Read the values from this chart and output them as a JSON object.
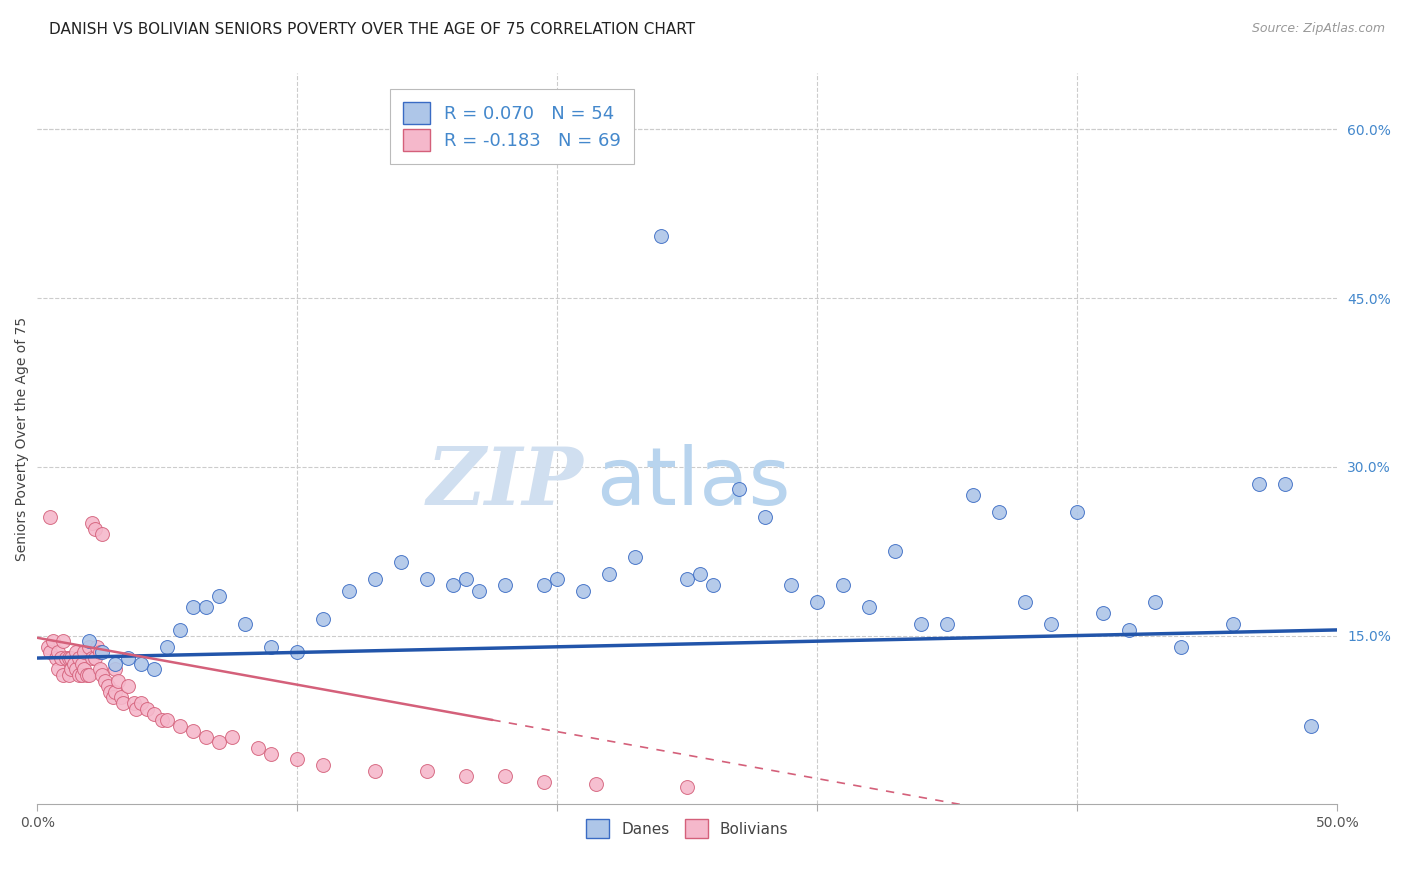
{
  "title": "DANISH VS BOLIVIAN SENIORS POVERTY OVER THE AGE OF 75 CORRELATION CHART",
  "source": "Source: ZipAtlas.com",
  "ylabel": "Seniors Poverty Over the Age of 75",
  "xlim": [
    0.0,
    0.5
  ],
  "ylim": [
    0.0,
    0.65
  ],
  "xticks": [
    0.0,
    0.1,
    0.2,
    0.3,
    0.4,
    0.5
  ],
  "xticklabels": [
    "0.0%",
    "",
    "",
    "",
    "",
    "50.0%"
  ],
  "yticks_right": [
    0.0,
    0.15,
    0.3,
    0.45,
    0.6
  ],
  "ytick_labels_right": [
    "",
    "15.0%",
    "30.0%",
    "45.0%",
    "60.0%"
  ],
  "danes_R": 0.07,
  "danes_N": 54,
  "bolivians_R": -0.183,
  "bolivians_N": 69,
  "danes_color": "#aec6e8",
  "danes_edge_color": "#3a6bc4",
  "bolivians_color": "#f5b8cb",
  "bolivians_edge_color": "#d4607a",
  "danes_line_color": "#2255aa",
  "bolivians_line_color": "#d4607a",
  "danes_x": [
    0.02,
    0.025,
    0.03,
    0.035,
    0.04,
    0.045,
    0.05,
    0.055,
    0.06,
    0.065,
    0.07,
    0.08,
    0.09,
    0.1,
    0.11,
    0.12,
    0.13,
    0.14,
    0.15,
    0.16,
    0.165,
    0.17,
    0.18,
    0.195,
    0.2,
    0.21,
    0.22,
    0.23,
    0.24,
    0.25,
    0.255,
    0.26,
    0.27,
    0.28,
    0.29,
    0.3,
    0.31,
    0.32,
    0.33,
    0.34,
    0.35,
    0.36,
    0.37,
    0.38,
    0.39,
    0.4,
    0.41,
    0.42,
    0.43,
    0.44,
    0.46,
    0.47,
    0.48,
    0.49
  ],
  "danes_y": [
    0.145,
    0.135,
    0.125,
    0.13,
    0.125,
    0.12,
    0.14,
    0.155,
    0.175,
    0.175,
    0.185,
    0.16,
    0.14,
    0.135,
    0.165,
    0.19,
    0.2,
    0.215,
    0.2,
    0.195,
    0.2,
    0.19,
    0.195,
    0.195,
    0.2,
    0.19,
    0.205,
    0.22,
    0.505,
    0.2,
    0.205,
    0.195,
    0.28,
    0.255,
    0.195,
    0.18,
    0.195,
    0.175,
    0.225,
    0.16,
    0.16,
    0.275,
    0.26,
    0.18,
    0.16,
    0.26,
    0.17,
    0.155,
    0.18,
    0.14,
    0.16,
    0.285,
    0.285,
    0.07
  ],
  "bolivians_x": [
    0.004,
    0.005,
    0.005,
    0.006,
    0.007,
    0.008,
    0.008,
    0.009,
    0.01,
    0.01,
    0.011,
    0.012,
    0.012,
    0.013,
    0.013,
    0.014,
    0.015,
    0.015,
    0.016,
    0.016,
    0.017,
    0.017,
    0.018,
    0.018,
    0.019,
    0.02,
    0.02,
    0.021,
    0.021,
    0.022,
    0.022,
    0.023,
    0.024,
    0.024,
    0.025,
    0.025,
    0.026,
    0.027,
    0.028,
    0.029,
    0.03,
    0.03,
    0.031,
    0.032,
    0.033,
    0.035,
    0.037,
    0.038,
    0.04,
    0.042,
    0.045,
    0.048,
    0.05,
    0.055,
    0.06,
    0.065,
    0.07,
    0.075,
    0.085,
    0.09,
    0.1,
    0.11,
    0.13,
    0.15,
    0.165,
    0.18,
    0.195,
    0.215,
    0.25
  ],
  "bolivians_y": [
    0.14,
    0.255,
    0.135,
    0.145,
    0.13,
    0.135,
    0.12,
    0.13,
    0.145,
    0.115,
    0.13,
    0.13,
    0.115,
    0.13,
    0.12,
    0.125,
    0.135,
    0.12,
    0.13,
    0.115,
    0.125,
    0.115,
    0.135,
    0.12,
    0.115,
    0.14,
    0.115,
    0.25,
    0.13,
    0.245,
    0.13,
    0.14,
    0.135,
    0.12,
    0.24,
    0.115,
    0.11,
    0.105,
    0.1,
    0.095,
    0.12,
    0.1,
    0.11,
    0.095,
    0.09,
    0.105,
    0.09,
    0.085,
    0.09,
    0.085,
    0.08,
    0.075,
    0.075,
    0.07,
    0.065,
    0.06,
    0.055,
    0.06,
    0.05,
    0.045,
    0.04,
    0.035,
    0.03,
    0.03,
    0.025,
    0.025,
    0.02,
    0.018,
    0.015
  ],
  "watermark_zip": "ZIP",
  "watermark_atlas": "atlas",
  "grid_color": "#cccccc",
  "background_color": "#ffffff",
  "title_fontsize": 11,
  "label_fontsize": 10,
  "tick_fontsize": 10,
  "legend_color_text": "#4488cc"
}
